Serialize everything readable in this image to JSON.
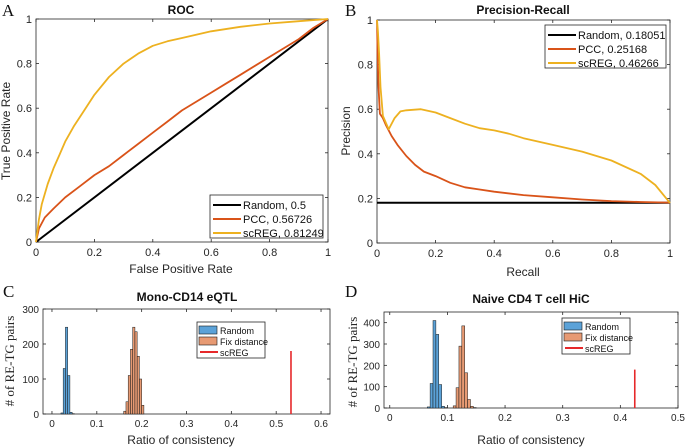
{
  "chart_data": [
    {
      "panel": "A",
      "type": "line",
      "title": "ROC",
      "xlabel": "False Positive Rate",
      "ylabel": "True Positive Rate",
      "xlim": [
        0,
        1
      ],
      "ylim": [
        0,
        1
      ],
      "xticks": [
        "0",
        "0.2",
        "0.4",
        "0.6",
        "0.8",
        "1"
      ],
      "yticks": [
        "0",
        "0.2",
        "0.4",
        "0.6",
        "0.8",
        "1"
      ],
      "legend_position": "bottom-right",
      "series": [
        {
          "name": "Random, 0.5",
          "color": "#000000",
          "x": [
            0,
            1
          ],
          "y": [
            0,
            1
          ]
        },
        {
          "name": "PCC, 0.56726",
          "color": "#d95319",
          "x": [
            0,
            0.01,
            0.03,
            0.06,
            0.1,
            0.15,
            0.2,
            0.25,
            0.3,
            0.35,
            0.4,
            0.45,
            0.5,
            0.55,
            0.6,
            0.65,
            0.7,
            0.75,
            0.8,
            0.85,
            0.9,
            0.95,
            1
          ],
          "y": [
            0,
            0.06,
            0.11,
            0.15,
            0.2,
            0.25,
            0.3,
            0.34,
            0.39,
            0.44,
            0.49,
            0.54,
            0.59,
            0.63,
            0.67,
            0.71,
            0.75,
            0.79,
            0.83,
            0.87,
            0.91,
            0.96,
            1
          ]
        },
        {
          "name": "scREG, 0.81249",
          "color": "#edb120",
          "x": [
            0,
            0.01,
            0.02,
            0.04,
            0.06,
            0.08,
            0.1,
            0.13,
            0.16,
            0.2,
            0.25,
            0.3,
            0.35,
            0.4,
            0.45,
            0.5,
            0.55,
            0.6,
            0.7,
            0.8,
            0.9,
            1
          ],
          "y": [
            0,
            0.1,
            0.17,
            0.26,
            0.33,
            0.39,
            0.45,
            0.52,
            0.58,
            0.66,
            0.74,
            0.8,
            0.845,
            0.88,
            0.9,
            0.915,
            0.93,
            0.945,
            0.965,
            0.98,
            0.99,
            1
          ]
        }
      ]
    },
    {
      "panel": "B",
      "type": "line",
      "title": "Precision-Recall",
      "xlabel": "Recall",
      "ylabel": "Precision",
      "xlim": [
        0,
        1
      ],
      "ylim": [
        0,
        1
      ],
      "xticks": [
        "0",
        "0.2",
        "0.4",
        "0.6",
        "0.8",
        "1"
      ],
      "yticks": [
        "0",
        "0.2",
        "0.4",
        "0.6",
        "0.8",
        "1"
      ],
      "legend_position": "top-right",
      "series": [
        {
          "name": "Random, 0.18051",
          "color": "#000000",
          "x": [
            0,
            1
          ],
          "y": [
            0.18051,
            0.18051
          ]
        },
        {
          "name": "PCC, 0.25168",
          "color": "#d95319",
          "x": [
            0,
            0.002,
            0.005,
            0.01,
            0.02,
            0.03,
            0.05,
            0.07,
            0.1,
            0.13,
            0.16,
            0.2,
            0.25,
            0.3,
            0.35,
            0.4,
            0.5,
            0.6,
            0.7,
            0.8,
            0.9,
            1
          ],
          "y": [
            1,
            0.85,
            0.7,
            0.58,
            0.56,
            0.53,
            0.48,
            0.44,
            0.39,
            0.35,
            0.32,
            0.3,
            0.27,
            0.25,
            0.24,
            0.23,
            0.215,
            0.205,
            0.195,
            0.188,
            0.184,
            0.181
          ]
        },
        {
          "name": "scREG, 0.46266",
          "color": "#edb120",
          "x": [
            0,
            0.003,
            0.007,
            0.012,
            0.02,
            0.03,
            0.04,
            0.06,
            0.08,
            0.1,
            0.15,
            0.2,
            0.25,
            0.3,
            0.35,
            0.4,
            0.45,
            0.5,
            0.6,
            0.7,
            0.8,
            0.9,
            0.95,
            1
          ],
          "y": [
            1,
            0.95,
            0.85,
            0.7,
            0.57,
            0.54,
            0.51,
            0.56,
            0.59,
            0.595,
            0.6,
            0.585,
            0.56,
            0.535,
            0.515,
            0.505,
            0.49,
            0.47,
            0.44,
            0.41,
            0.37,
            0.31,
            0.26,
            0.18
          ]
        }
      ]
    },
    {
      "panel": "C",
      "type": "bar",
      "title": "Mono-CD14 eQTL",
      "xlabel": "Ratio of consistency",
      "ylabel": "# of RE-TG pairs",
      "xlim": [
        -0.02,
        0.62
      ],
      "ylim": [
        0,
        300
      ],
      "xticks": [
        "0",
        "0.1",
        "0.2",
        "0.3",
        "0.4",
        "0.5",
        "0.6"
      ],
      "xtick_values": [
        0,
        0.1,
        0.2,
        0.3,
        0.4,
        0.5,
        0.6
      ],
      "yticks": [
        "0",
        "100",
        "200",
        "300"
      ],
      "ytick_values": [
        0,
        100,
        200,
        300
      ],
      "legend_position": "top-right",
      "bin_width": 0.005,
      "series": [
        {
          "name": "Random",
          "color": "#5ba2d8",
          "bins": [
            0.02,
            0.025,
            0.03,
            0.035,
            0.04,
            0.045
          ],
          "counts": [
            3,
            130,
            248,
            110,
            5,
            1
          ]
        },
        {
          "name": "Fix distance",
          "color": "#e79a73",
          "bins": [
            0.16,
            0.165,
            0.17,
            0.175,
            0.18,
            0.185,
            0.19,
            0.195,
            0.2
          ],
          "counts": [
            8,
            35,
            110,
            185,
            248,
            235,
            165,
            100,
            25
          ]
        },
        {
          "name": "scREG",
          "color": "#e6282a",
          "type": "vline",
          "x": 0.533,
          "height": 180
        }
      ]
    },
    {
      "panel": "D",
      "type": "bar",
      "title": "Naive CD4 T cell HiC",
      "xlabel": "Ratio of consistency",
      "ylabel": "# of RE-TG pairs",
      "xlim": [
        -0.01,
        0.5
      ],
      "ylim": [
        0,
        450
      ],
      "xticks": [
        "0",
        "0.1",
        "0.2",
        "0.3",
        "0.4",
        "0.5"
      ],
      "xtick_values": [
        0,
        0.1,
        0.2,
        0.3,
        0.4,
        0.5
      ],
      "yticks": [
        "0",
        "100",
        "200",
        "300",
        "400"
      ],
      "ytick_values": [
        0,
        100,
        200,
        300,
        400
      ],
      "legend_position": "top-right",
      "bin_width": 0.005,
      "series": [
        {
          "name": "Random",
          "color": "#5ba2d8",
          "bins": [
            0.065,
            0.07,
            0.075,
            0.08,
            0.085,
            0.09,
            0.095
          ],
          "counts": [
            5,
            115,
            410,
            345,
            110,
            8,
            2
          ]
        },
        {
          "name": "Fix distance",
          "color": "#e79a73",
          "bins": [
            0.11,
            0.115,
            0.12,
            0.125,
            0.13,
            0.135,
            0.14,
            0.145
          ],
          "counts": [
            10,
            95,
            290,
            385,
            165,
            40,
            8,
            2
          ]
        },
        {
          "name": "scREG",
          "color": "#e6282a",
          "type": "vline",
          "x": 0.425,
          "height": 180
        }
      ]
    }
  ],
  "labels": {
    "A": "A",
    "B": "B",
    "C": "C",
    "D": "D"
  }
}
